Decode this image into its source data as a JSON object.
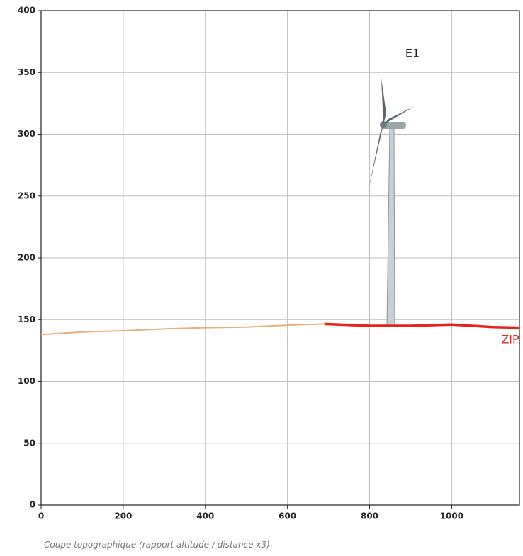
{
  "chart_data": {
    "type": "line",
    "caption": "Coupe topographique (rapport altitude / distance x3)",
    "annotations": [
      "E1",
      "ZIP"
    ],
    "series": [
      {
        "color": "#e8b07a",
        "x": [
          0,
          100,
          200,
          300,
          400,
          500,
          600,
          690
        ],
        "values": [
          138,
          140,
          141,
          142.5,
          143.5,
          144,
          145.5,
          146.5
        ]
      },
      {
        "color": "#e8231c",
        "x": [
          690,
          800,
          900,
          1000,
          1100,
          1165
        ],
        "values": [
          146.5,
          145,
          145,
          146,
          144,
          143.5
        ]
      }
    ],
    "xlim": [
      0,
      1165
    ],
    "xticks": [
      0,
      200,
      400,
      600,
      800,
      1000
    ],
    "ylim": [
      0,
      400
    ],
    "yticks": [
      0,
      50,
      100,
      150,
      200,
      250,
      300,
      350,
      400
    ],
    "grid": true
  }
}
